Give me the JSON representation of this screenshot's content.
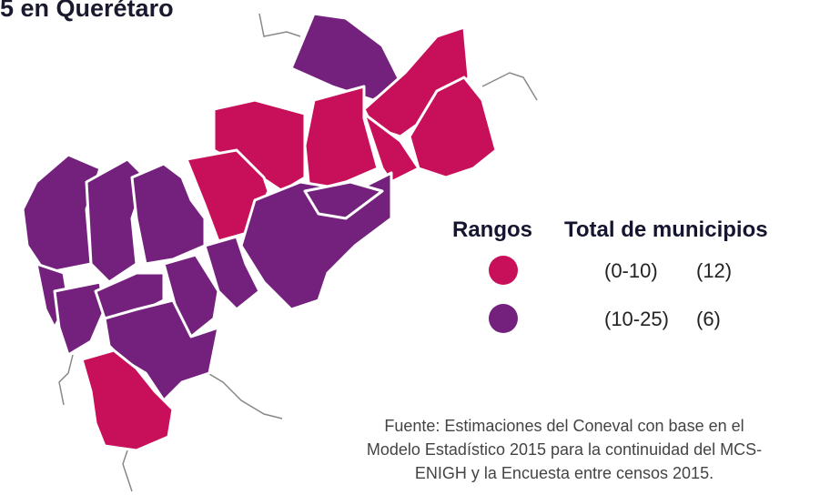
{
  "title": "5 en Querétaro",
  "legend": {
    "headers": [
      "Rangos",
      "Total de municipios"
    ],
    "items": [
      {
        "range": "(0-10)",
        "count": "(12)",
        "color": "#c8105a"
      },
      {
        "range": "(10-25)",
        "count": "(6)",
        "color": "#74217e"
      }
    ]
  },
  "source": [
    "Fuente: Estimaciones del Coneval con base en el",
    "Modelo Estadístico 2015 para la continuidad del MCS-",
    "ENIGH y la Encuesta entre censos 2015."
  ]
}
